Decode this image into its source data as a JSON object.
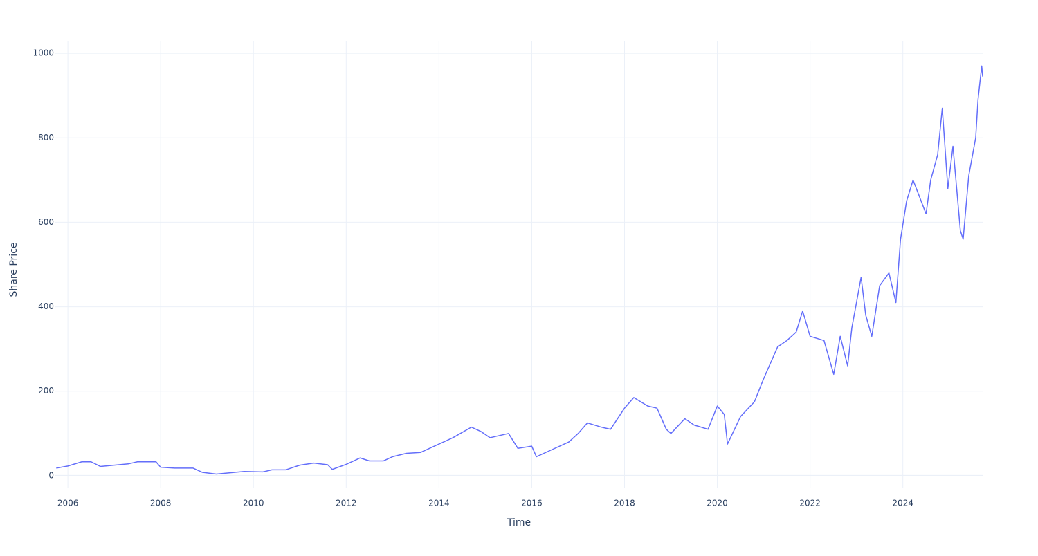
{
  "chart_data": {
    "type": "line",
    "x_label": "Time",
    "y_label": "Share Price",
    "x": [
      2005.75,
      2006.0,
      2006.3,
      2006.5,
      2006.7,
      2007.0,
      2007.3,
      2007.5,
      2007.9,
      2008.0,
      2008.3,
      2008.7,
      2008.9,
      2009.2,
      2009.5,
      2009.8,
      2010.2,
      2010.4,
      2010.7,
      2011.0,
      2011.3,
      2011.6,
      2011.7,
      2012.0,
      2012.3,
      2012.5,
      2012.8,
      2013.0,
      2013.3,
      2013.6,
      2014.0,
      2014.3,
      2014.7,
      2014.9,
      2015.1,
      2015.5,
      2015.7,
      2016.0,
      2016.1,
      2016.4,
      2016.8,
      2017.0,
      2017.2,
      2017.5,
      2017.7,
      2018.0,
      2018.2,
      2018.5,
      2018.7,
      2018.9,
      2019.0,
      2019.3,
      2019.5,
      2019.8,
      2020.0,
      2020.15,
      2020.22,
      2020.5,
      2020.8,
      2021.0,
      2021.3,
      2021.5,
      2021.7,
      2021.84,
      2022.0,
      2022.3,
      2022.51,
      2022.65,
      2022.81,
      2022.9,
      2023.1,
      2023.2,
      2023.33,
      2023.5,
      2023.7,
      2023.85,
      2023.95,
      2024.08,
      2024.22,
      2024.5,
      2024.6,
      2024.75,
      2024.85,
      2024.97,
      2025.08,
      2025.24,
      2025.3,
      2025.42,
      2025.57,
      2025.62,
      2025.7,
      2025.72
    ],
    "series": [
      {
        "name": "Share Price",
        "color": "#636efa",
        "values": [
          18,
          23,
          33,
          33,
          22,
          25,
          28,
          33,
          33,
          20,
          18,
          18,
          8,
          4,
          7,
          10,
          9,
          14,
          14,
          25,
          30,
          26,
          15,
          27,
          42,
          35,
          35,
          45,
          53,
          55,
          75,
          90,
          115,
          105,
          90,
          100,
          65,
          70,
          45,
          60,
          80,
          100,
          125,
          115,
          110,
          160,
          185,
          165,
          160,
          110,
          100,
          135,
          120,
          110,
          165,
          145,
          75,
          140,
          175,
          230,
          305,
          320,
          340,
          390,
          330,
          320,
          240,
          330,
          260,
          350,
          470,
          380,
          330,
          450,
          480,
          410,
          560,
          650,
          700,
          620,
          700,
          760,
          870,
          680,
          780,
          580,
          560,
          710,
          800,
          890,
          970,
          945
        ]
      }
    ],
    "xlim": [
      2005.73,
      2025.72
    ],
    "xticks": [
      2006,
      2008,
      2010,
      2012,
      2014,
      2016,
      2018,
      2020,
      2022,
      2024
    ],
    "ylim": [
      -28,
      1028
    ],
    "yticks": [
      0,
      200,
      400,
      600,
      800,
      1000
    ],
    "grid": true
  }
}
